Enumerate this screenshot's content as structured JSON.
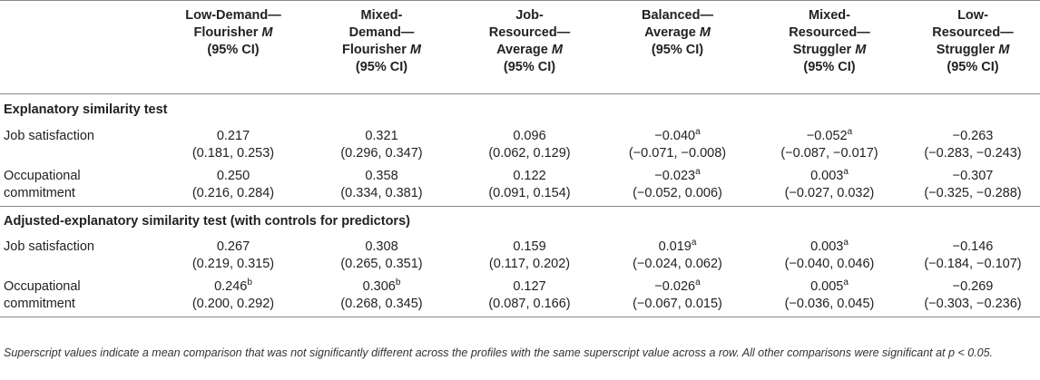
{
  "table": {
    "columns": [
      {
        "lines": [
          "Low-Demand—",
          "Flourisher M",
          "(95% CI)"
        ]
      },
      {
        "lines": [
          "Mixed-",
          "Demand—",
          "Flourisher M",
          "(95% CI)"
        ]
      },
      {
        "lines": [
          "Job-",
          "Resourced—",
          "Average M",
          "(95% CI)"
        ]
      },
      {
        "lines": [
          "Balanced—",
          "Average M",
          "(95% CI)"
        ]
      },
      {
        "lines": [
          "Mixed-",
          "Resourced—",
          "Struggler M",
          "(95% CI)"
        ]
      },
      {
        "lines": [
          "Low-",
          "Resourced—",
          "Struggler M",
          "(95% CI)"
        ]
      }
    ],
    "sections": [
      {
        "title": "Explanatory similarity test",
        "rows": [
          {
            "label": [
              "Job satisfaction"
            ],
            "cells": [
              {
                "mean": "0.217",
                "sup": "",
                "ci": "(0.181, 0.253)"
              },
              {
                "mean": "0.321",
                "sup": "",
                "ci": "(0.296, 0.347)"
              },
              {
                "mean": "0.096",
                "sup": "",
                "ci": "(0.062, 0.129)"
              },
              {
                "mean": "−0.040",
                "sup": "a",
                "ci": "(−0.071, −0.008)"
              },
              {
                "mean": "−0.052",
                "sup": "a",
                "ci": "(−0.087, −0.017)"
              },
              {
                "mean": "−0.263",
                "sup": "",
                "ci": "(−0.283, −0.243)"
              }
            ]
          },
          {
            "label": [
              "Occupational",
              "commitment"
            ],
            "cells": [
              {
                "mean": "0.250",
                "sup": "",
                "ci": "(0.216, 0.284)"
              },
              {
                "mean": "0.358",
                "sup": "",
                "ci": "(0.334, 0.381)"
              },
              {
                "mean": "0.122",
                "sup": "",
                "ci": "(0.091, 0.154)"
              },
              {
                "mean": "−0.023",
                "sup": "a",
                "ci": "(−0.052, 0.006)"
              },
              {
                "mean": "0.003",
                "sup": "a",
                "ci": "(−0.027, 0.032)"
              },
              {
                "mean": "−0.307",
                "sup": "",
                "ci": "(−0.325, −0.288)"
              }
            ]
          }
        ]
      },
      {
        "title": "Adjusted-explanatory similarity test (with controls for predictors)",
        "rows": [
          {
            "label": [
              "Job satisfaction"
            ],
            "cells": [
              {
                "mean": "0.267",
                "sup": "",
                "ci": "(0.219, 0.315)"
              },
              {
                "mean": "0.308",
                "sup": "",
                "ci": "(0.265, 0.351)"
              },
              {
                "mean": "0.159",
                "sup": "",
                "ci": "(0.117, 0.202)"
              },
              {
                "mean": "0.019",
                "sup": "a",
                "ci": "(−0.024, 0.062)"
              },
              {
                "mean": "0.003",
                "sup": "a",
                "ci": "(−0.040, 0.046)"
              },
              {
                "mean": "−0.146",
                "sup": "",
                "ci": "(−0.184, −0.107)"
              }
            ]
          },
          {
            "label": [
              "Occupational",
              "commitment"
            ],
            "cells": [
              {
                "mean": "0.246",
                "sup": "b",
                "ci": "(0.200, 0.292)"
              },
              {
                "mean": "0.306",
                "sup": "b",
                "ci": "(0.268, 0.345)"
              },
              {
                "mean": "0.127",
                "sup": "",
                "ci": "(0.087, 0.166)"
              },
              {
                "mean": "−0.026",
                "sup": "a",
                "ci": "(−0.067, 0.015)"
              },
              {
                "mean": "0.005",
                "sup": "a",
                "ci": "(−0.036, 0.045)"
              },
              {
                "mean": "−0.269",
                "sup": "",
                "ci": "(−0.303, −0.236)"
              }
            ]
          }
        ]
      }
    ],
    "footnote": "Superscript values indicate a mean comparison that was not significantly different across the profiles with the same superscript value across a row. All other comparisons were significant at p < 0.05."
  }
}
